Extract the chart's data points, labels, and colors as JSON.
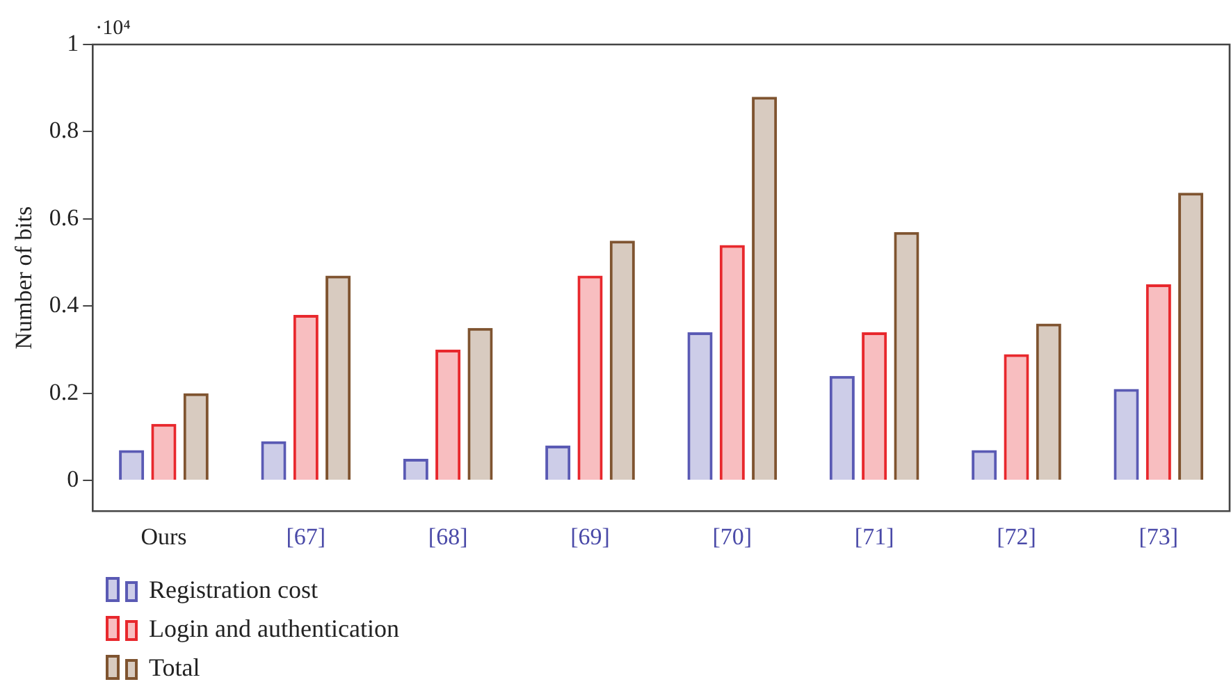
{
  "chart_data": {
    "type": "bar",
    "ylabel": "Number of bits",
    "annotations": [
      "·10⁴"
    ],
    "categories": [
      "Ours",
      "[67]",
      "[68]",
      "[69]",
      "[70]",
      "[71]",
      "[72]",
      "[73]"
    ],
    "series": [
      {
        "name": "Registration cost",
        "color": "#5a5ab4",
        "values": [
          0.07,
          0.09,
          0.05,
          0.08,
          0.34,
          0.24,
          0.07,
          0.21
        ]
      },
      {
        "name": "Login and authentication",
        "color": "#e8282d",
        "values": [
          0.13,
          0.38,
          0.3,
          0.47,
          0.54,
          0.34,
          0.29,
          0.45
        ]
      },
      {
        "name": "Total",
        "color": "#7f5430",
        "values": [
          0.2,
          0.47,
          0.35,
          0.55,
          0.88,
          0.57,
          0.36,
          0.66
        ]
      }
    ],
    "ylim": [
      -0.07,
      1
    ],
    "yticks": [
      0,
      0.2,
      0.4,
      0.6,
      0.8,
      1
    ],
    "grid": false,
    "legend": "bottom left"
  }
}
